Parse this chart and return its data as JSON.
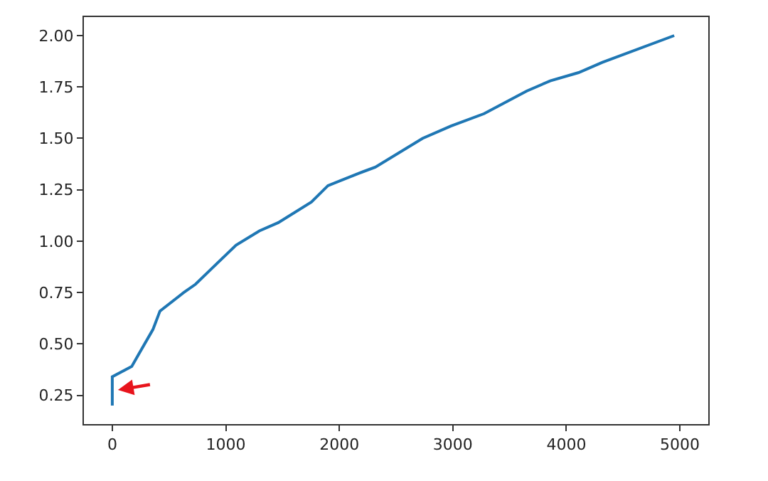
{
  "chart_data": {
    "type": "line",
    "x": [
      0,
      0,
      171,
      233,
      358,
      420,
      629,
      733,
      920,
      1090,
      1296,
      1462,
      1754,
      1900,
      2171,
      2317,
      2733,
      2983,
      3275,
      3650,
      3858,
      4108,
      4317,
      4950
    ],
    "series": [
      {
        "color": "#1f77b4",
        "values": [
          0.2,
          0.34,
          0.39,
          0.45,
          0.57,
          0.66,
          0.75,
          0.79,
          0.89,
          0.98,
          1.05,
          1.09,
          1.19,
          1.27,
          1.33,
          1.36,
          1.5,
          1.56,
          1.62,
          1.73,
          1.78,
          1.82,
          1.87,
          2.0
        ]
      }
    ],
    "xlim": [
      -250,
      5250
    ],
    "xticks": [
      0,
      1000,
      2000,
      3000,
      4000,
      5000
    ],
    "ylim": [
      0.11,
      2.09
    ],
    "yticks": [
      {
        "value": 0.25,
        "label": "0.25"
      },
      {
        "value": 0.5,
        "label": "0.50"
      },
      {
        "value": 0.75,
        "label": "0.75"
      },
      {
        "value": 1.0,
        "label": "1.00"
      },
      {
        "value": 1.25,
        "label": "1.25"
      },
      {
        "value": 1.5,
        "label": "1.50"
      },
      {
        "value": 1.75,
        "label": "1.75"
      },
      {
        "value": 2.0,
        "label": "2.00"
      }
    ],
    "marker": "none",
    "line_style": "solid"
  }
}
